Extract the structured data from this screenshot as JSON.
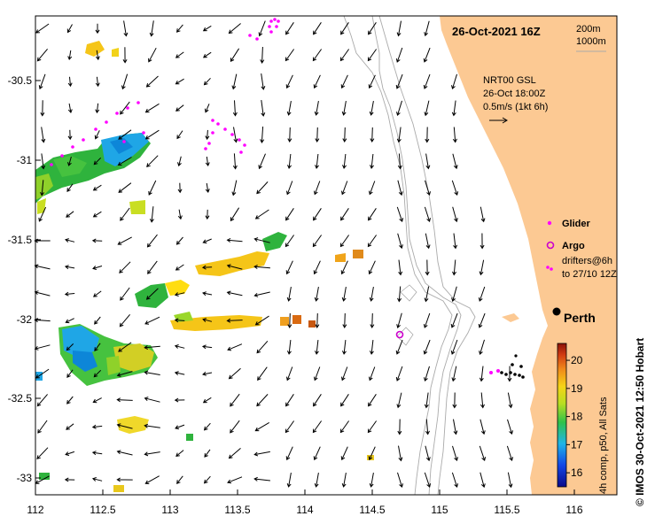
{
  "map": {
    "title": "26-Oct-2021 16Z",
    "depth_contours": [
      "200m",
      "1000m"
    ],
    "product_lines": [
      "NRT00 GSL",
      "26-Oct 18:00Z",
      "0.5m/s (1kt 6h)"
    ],
    "city": "Perth",
    "x_ticks": [
      "112",
      "112.5",
      "113",
      "113.5",
      "114",
      "114.5",
      "115",
      "115.5",
      "116"
    ],
    "y_ticks": [
      "-30.5",
      "-31",
      "-31.5",
      "-32",
      "-32.5",
      "-33"
    ],
    "legend": {
      "glider": "Glider",
      "argo": "Argo",
      "drifters_line1": "drifters@6h",
      "drifters_line2": "to 27/10 12Z"
    },
    "colorbar": {
      "label": "4h comp, p50, All Sats",
      "ticks": [
        "20",
        "19",
        "18",
        "17",
        "16"
      ],
      "range": [
        15.5,
        20.6
      ]
    },
    "credit": "© IMOS 30-Oct-2021 12:50 Hobart",
    "colors": {
      "land": "#fcc993",
      "glider": "#ff00ff",
      "argo": "#cc00cc",
      "contour": "#aaaaaa"
    }
  }
}
